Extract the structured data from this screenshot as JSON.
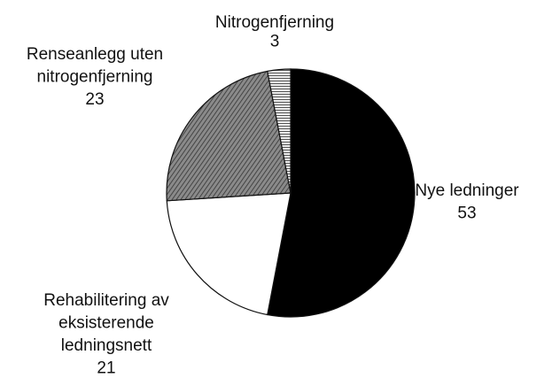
{
  "chart_data": {
    "type": "pie",
    "categories": [
      "Nye ledninger",
      "Rehabilitering av\neksisterende\nledningsnett",
      "Renseanlegg uten\nnitrogenfjerning",
      "Nitrogenfjerning"
    ],
    "values": [
      53,
      21,
      23,
      3
    ],
    "colors": [
      "#000000",
      "#ffffff",
      "#707070",
      "#c4c4c4"
    ]
  }
}
